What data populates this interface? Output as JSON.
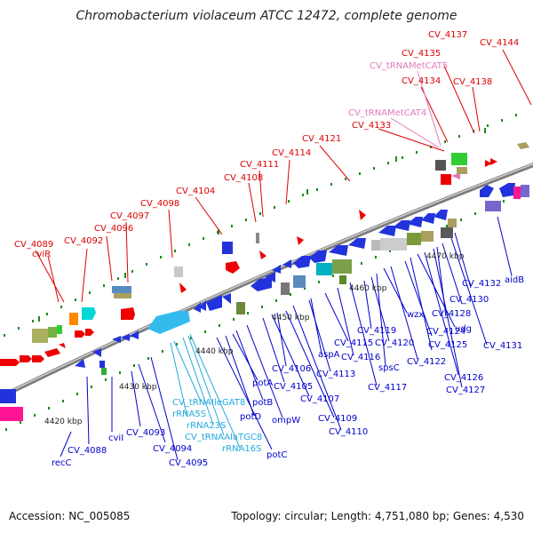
{
  "title": "Chromobacterium violaceum ATCC 12472, complete genome",
  "footer": {
    "accession": "Accession: NC_005085",
    "summary": "Topology: circular; Length: 4,751,080 bp; Genes: 4,530"
  },
  "colors": {
    "forward_label": "#dd0000",
    "reverse_label": "#0000cc",
    "trna_label": "#e07ab8",
    "rna_label": "#22aadd",
    "backbone": "#888888",
    "tick_mark": "#1a8a1a"
  },
  "ticks": [
    "4420 kbp",
    "4430 kbp",
    "4440 kbp",
    "4450 kbp",
    "4460 kbp",
    "4470 kbp"
  ],
  "labels": {
    "forward": [
      "CV_4089",
      "cviR",
      "CV_4092",
      "CV_4096",
      "CV_4097",
      "CV_4098",
      "CV_4104",
      "CV_4108",
      "CV_4111",
      "CV_4114",
      "CV_4121",
      "CV_4133",
      "CV_4134",
      "CV_4135",
      "CV_4137",
      "CV_4138",
      "CV_4144"
    ],
    "trna_forward": [
      "CV_tRNAMetCAT5",
      "CV_tRNAMetCAT4"
    ],
    "reverse": [
      "recC",
      "CV_4088",
      "cviI",
      "CV_4093",
      "CV_4094",
      "CV_4095",
      "potA",
      "potB",
      "potC",
      "potD",
      "ompW",
      "CV_4105",
      "CV_4106",
      "CV_4107",
      "CV_4109",
      "CV_4110",
      "CV_4113",
      "aspA",
      "CV_4115",
      "CV_4116",
      "CV_4117",
      "CV_4119",
      "CV_4120",
      "spsC",
      "wzx",
      "CV_4122",
      "CV_4124",
      "CV_4125",
      "udg",
      "CV_4126",
      "CV_4127",
      "CV_4128",
      "CV_4130",
      "CV_4131",
      "CV_4132",
      "aidB"
    ],
    "rna_reverse": [
      "CV_tRNAIleGAT8",
      "rRNA5S",
      "rRNA23S",
      "CV_tRNAAlaTGC8",
      "rRNA16S"
    ]
  }
}
